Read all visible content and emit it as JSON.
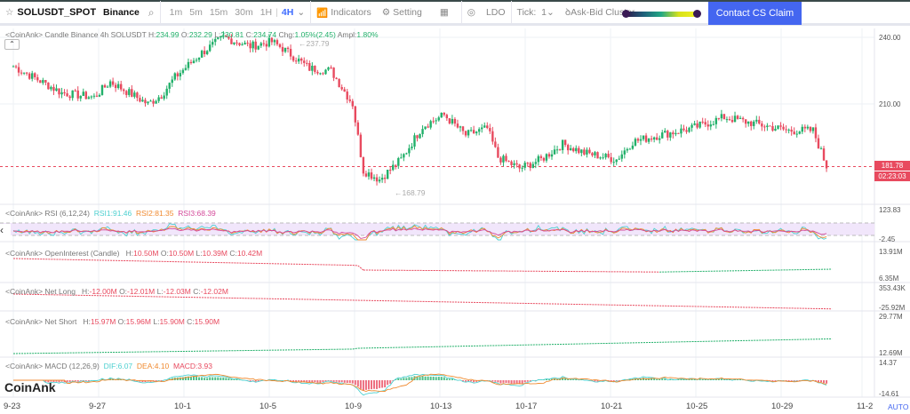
{
  "toolbar": {
    "star_icon": "star-outline",
    "symbol": "SOLUSDT_SPOT",
    "exchange": "Binance",
    "timeframes": [
      "1m",
      "5m",
      "15m",
      "30m",
      "1H",
      "4H"
    ],
    "active_timeframe": "4H",
    "indicators": "Indicators",
    "setting": "Setting",
    "ldo": "LDO",
    "tick_label": "Tick:",
    "tick_value": "1",
    "cluster": "Ask-Bid Cluster",
    "contact": "Contact CS Claim"
  },
  "main": {
    "prefix": "<CoinAnk> Candle  Binance 4h SOLUSDT",
    "H": "234.99",
    "O": "232.29",
    "L": "230.81",
    "C": "234.74",
    "chg": "1.05%(2.45)",
    "ampl": "1.80%",
    "high_marker": "237.79",
    "low_marker": "168.79",
    "price_tag": "181.78",
    "countdown": "02:23:03",
    "axis": [
      "240.00",
      "210.00"
    ]
  },
  "rsi": {
    "title": "<CoinAnk> RSI  (6,12,24)",
    "rsi1": "RSI1:91.46",
    "rsi2": "RSI2:81.35",
    "rsi3": "RSI3:68.39",
    "axis": [
      "123.83",
      "-2.45"
    ]
  },
  "oi": {
    "title": "<CoinAnk> OpenInterest (Candle)",
    "H": "10.50M",
    "O": "10.50M",
    "L": "10.39M",
    "C": "10.42M",
    "axis": [
      "13.91M",
      "6.35M"
    ]
  },
  "netlong": {
    "title": "<CoinAnk> Net Long",
    "H": "-12.00M",
    "O": "-12.01M",
    "L": "-12.03M",
    "C": "-12.02M",
    "axis": [
      "353.43K",
      "-25.92M"
    ]
  },
  "netshort": {
    "title": "<CoinAnk> Net Short",
    "H": "15.97M",
    "O": "15.96M",
    "L": "15.90M",
    "C": "15.90M",
    "axis": [
      "29.77M",
      "12.69M"
    ]
  },
  "macd": {
    "title": "<CoinAnk> MACD  (12,26,9)",
    "dif": "DIF:6.07",
    "dea": "DEA:4.10",
    "macd": "MACD:3.93",
    "axis": [
      "14.37",
      "-14.61"
    ]
  },
  "dates": [
    "9-23",
    "9-27",
    "10-1",
    "10-5",
    "10-9",
    "10-13",
    "10-17",
    "10-21",
    "10-25",
    "10-29",
    "11-2"
  ],
  "auto": "AUTO",
  "watermark": "CoinAnk",
  "colors": {
    "up": "#22b06a",
    "down": "#e84a5f",
    "accent": "#4466f0"
  },
  "price_path": [
    [
      0,
      227
    ],
    [
      18,
      215
    ],
    [
      30,
      213
    ],
    [
      36,
      220
    ],
    [
      50,
      210
    ],
    [
      55,
      214
    ],
    [
      60,
      222
    ],
    [
      70,
      233
    ],
    [
      78,
      240
    ],
    [
      88,
      236
    ],
    [
      96,
      238
    ],
    [
      100,
      235
    ],
    [
      110,
      226
    ],
    [
      118,
      225
    ],
    [
      126,
      210
    ],
    [
      130,
      180
    ],
    [
      136,
      176
    ],
    [
      144,
      185
    ],
    [
      152,
      200
    ],
    [
      160,
      205
    ],
    [
      168,
      196
    ],
    [
      176,
      199
    ],
    [
      180,
      186
    ],
    [
      188,
      181
    ],
    [
      196,
      185
    ],
    [
      204,
      192
    ],
    [
      212,
      188
    ],
    [
      224,
      185
    ],
    [
      230,
      193
    ],
    [
      240,
      196
    ],
    [
      252,
      199
    ],
    [
      264,
      204
    ],
    [
      276,
      201
    ],
    [
      288,
      198
    ],
    [
      297,
      198
    ],
    [
      302,
      182
    ]
  ]
}
